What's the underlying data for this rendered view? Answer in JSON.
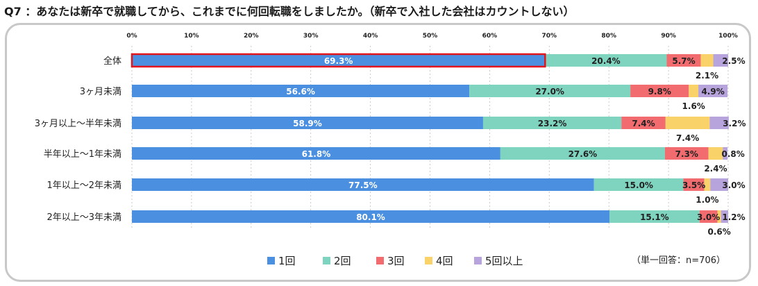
{
  "title": "Q7 ：あなたは新卒で就職してから、これまでに何回転職をしましたか。（新卒で入社した会社はカウントしない）",
  "note": "（単一回答：n=706）",
  "colors": {
    "s1": "#4a8fe0",
    "s2": "#7fd4c0",
    "s3": "#f26b6e",
    "s4": "#f9d36a",
    "s5": "#b8a4dc",
    "highlight": "#e3141c"
  },
  "chart_data": {
    "type": "bar",
    "orientation": "horizontal",
    "stacked": true,
    "title": "Q7 ：あなたは新卒で就職してから、これまでに何回転職をしましたか。（新卒で入社した会社はカウントしない）",
    "xlim": [
      0,
      100
    ],
    "xticks": [
      "0%",
      "10%",
      "20%",
      "30%",
      "40%",
      "50%",
      "60%",
      "70%",
      "80%",
      "90%",
      "100%"
    ],
    "categories": [
      "全体",
      "3ヶ月未満",
      "3ヶ月以上～半年未満",
      "半年以上～1年未満",
      "1年以上～2年未満",
      "2年以上～3年未満"
    ],
    "series": [
      {
        "name": "1回",
        "values": [
          69.3,
          56.6,
          58.9,
          61.8,
          77.5,
          80.1
        ]
      },
      {
        "name": "2回",
        "values": [
          20.4,
          27.0,
          23.2,
          27.6,
          15.0,
          15.1
        ]
      },
      {
        "name": "3回",
        "values": [
          5.7,
          9.8,
          7.4,
          7.3,
          3.5,
          3.0
        ]
      },
      {
        "name": "4回",
        "values": [
          2.1,
          1.6,
          7.4,
          2.4,
          1.0,
          0.6
        ]
      },
      {
        "name": "5回以上",
        "values": [
          2.5,
          4.9,
          3.2,
          0.8,
          3.0,
          1.2
        ]
      }
    ],
    "value_labels": [
      [
        "69.3%",
        "20.4%",
        "5.7%",
        "2.1%",
        "2.5%"
      ],
      [
        "56.6%",
        "27.0%",
        "9.8%",
        "1.6%",
        "4.9%"
      ],
      [
        "58.9%",
        "23.2%",
        "7.4%",
        "7.4%",
        "3.2%"
      ],
      [
        "61.8%",
        "27.6%",
        "7.3%",
        "2.4%",
        "0.8%"
      ],
      [
        "77.5%",
        "15.0%",
        "3.5%",
        "1.0%",
        "3.0%"
      ],
      [
        "80.1%",
        "15.1%",
        "3.0%",
        "0.6%",
        "1.2%"
      ]
    ],
    "highlighted_segment": {
      "category": "全体",
      "series": "1回"
    },
    "legend_position": "bottom"
  }
}
